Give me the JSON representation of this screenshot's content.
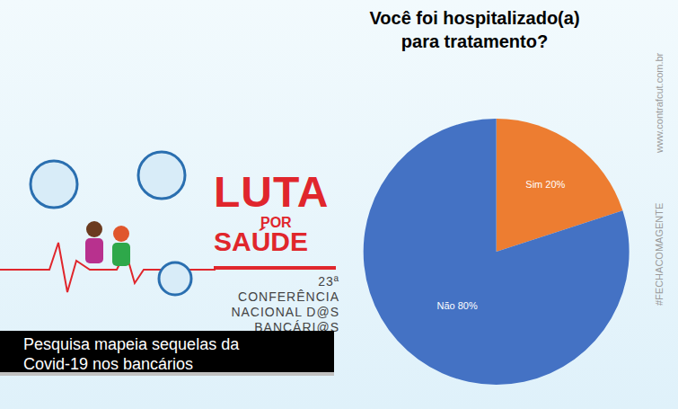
{
  "chart_data": {
    "type": "pie",
    "title": [
      "Você foi hospitalizado(a)",
      "para tratamento?"
    ],
    "categories": [
      "Sim",
      "Não"
    ],
    "values": [
      20,
      80
    ],
    "value_labels": [
      "20%",
      "80%"
    ],
    "colors": [
      "#ed7d31",
      "#4472c4"
    ],
    "data_labels": true
  },
  "banner": {
    "title": [
      "LUTA",
      "POR",
      "SAÚDE"
    ],
    "subtitle": [
      "23ª CONFERÊNCIA",
      "NACIONAL D@S",
      "BANCÁRI@S"
    ],
    "caption": [
      "Pesquisa mapeia sequelas da",
      "Covid-19 nos bancários"
    ]
  },
  "watermarks": [
    "www.contrafcut.com.br",
    "#FECHACOMAGENTE"
  ]
}
